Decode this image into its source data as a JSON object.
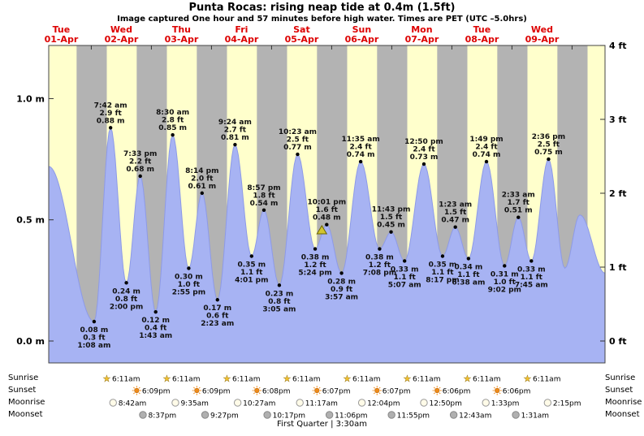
{
  "title": "Punta Rocas: rising  neap tide at 0.4m (1.5ft)",
  "subtitle": "Image captured One hour and 57 minutes before high water. Times are PET (UTC –5.0hrs)",
  "astro_labels": {
    "sunrise": "Sunrise",
    "sunset": "Sunset",
    "moonrise": "Moonrise",
    "moonset": "Moonset"
  },
  "moon_phase": "First Quarter | 3:30am",
  "chart_data": {
    "type": "area",
    "y_axis_left": {
      "unit": "m",
      "ticks": [
        0.0,
        0.5,
        1.0
      ]
    },
    "y_axis_right": {
      "unit": "ft",
      "ticks": [
        0,
        1,
        2,
        3,
        4
      ]
    },
    "days": [
      {
        "name": "Tue",
        "date": "01-Apr"
      },
      {
        "name": "Wed",
        "date": "02-Apr"
      },
      {
        "name": "Thu",
        "date": "03-Apr"
      },
      {
        "name": "Fri",
        "date": "04-Apr"
      },
      {
        "name": "Sat",
        "date": "05-Apr"
      },
      {
        "name": "Sun",
        "date": "06-Apr"
      },
      {
        "name": "Mon",
        "date": "07-Apr"
      },
      {
        "name": "Tue",
        "date": "08-Apr"
      },
      {
        "name": "Wed",
        "date": "09-Apr"
      }
    ],
    "tide_events": [
      {
        "day": 1,
        "time": "1:08 am",
        "type": "low",
        "m": 0.08,
        "ft": 0.3
      },
      {
        "day": 1,
        "time": "7:42 am",
        "type": "high",
        "m": 0.88,
        "ft": 2.9
      },
      {
        "day": 1,
        "time": "2:00 pm",
        "type": "low",
        "m": 0.24,
        "ft": 0.8
      },
      {
        "day": 1,
        "time": "7:33 pm",
        "type": "high",
        "m": 0.68,
        "ft": 2.2
      },
      {
        "day": 2,
        "time": "1:43 am",
        "type": "low",
        "m": 0.12,
        "ft": 0.4
      },
      {
        "day": 2,
        "time": "8:30 am",
        "type": "high",
        "m": 0.85,
        "ft": 2.8
      },
      {
        "day": 2,
        "time": "2:55 pm",
        "type": "low",
        "m": 0.3,
        "ft": 1.0
      },
      {
        "day": 2,
        "time": "8:14 pm",
        "type": "high",
        "m": 0.61,
        "ft": 2.0
      },
      {
        "day": 3,
        "time": "2:23 am",
        "type": "low",
        "m": 0.17,
        "ft": 0.6
      },
      {
        "day": 3,
        "time": "9:24 am",
        "type": "high",
        "m": 0.81,
        "ft": 2.7
      },
      {
        "day": 3,
        "time": "4:01 pm",
        "type": "low",
        "m": 0.35,
        "ft": 1.1
      },
      {
        "day": 3,
        "time": "8:57 pm",
        "type": "high",
        "m": 0.54,
        "ft": 1.8
      },
      {
        "day": 4,
        "time": "3:05 am",
        "type": "low",
        "m": 0.23,
        "ft": 0.8
      },
      {
        "day": 4,
        "time": "10:23 am",
        "type": "high",
        "m": 0.77,
        "ft": 2.5
      },
      {
        "day": 4,
        "time": "5:24 pm",
        "type": "low",
        "m": 0.38,
        "ft": 1.2
      },
      {
        "day": 4,
        "time": "10:01 pm",
        "type": "high",
        "m": 0.48,
        "ft": 1.6
      },
      {
        "day": 5,
        "time": "3:57 am",
        "type": "low",
        "m": 0.28,
        "ft": 0.9
      },
      {
        "day": 5,
        "time": "11:35 am",
        "type": "high",
        "m": 0.74,
        "ft": 2.4
      },
      {
        "day": 5,
        "time": "7:08 pm",
        "type": "low",
        "m": 0.38,
        "ft": 1.2
      },
      {
        "day": 5,
        "time": "11:43 pm",
        "type": "high",
        "m": 0.45,
        "ft": 1.5
      },
      {
        "day": 6,
        "time": "5:07 am",
        "type": "low",
        "m": 0.33,
        "ft": 1.1
      },
      {
        "day": 6,
        "time": "12:50 pm",
        "type": "high",
        "m": 0.73,
        "ft": 2.4
      },
      {
        "day": 6,
        "time": "8:17 pm",
        "type": "low",
        "m": 0.35,
        "ft": 1.1
      },
      {
        "day": 7,
        "time": "1:23 am",
        "type": "high",
        "m": 0.47,
        "ft": 1.5
      },
      {
        "day": 7,
        "time": "6:38 am",
        "type": "low",
        "m": 0.34,
        "ft": 1.1
      },
      {
        "day": 7,
        "time": "1:49 pm",
        "type": "high",
        "m": 0.74,
        "ft": 2.4
      },
      {
        "day": 7,
        "time": "9:02 pm",
        "type": "low",
        "m": 0.31,
        "ft": 1.0
      },
      {
        "day": 8,
        "time": "2:33 am",
        "type": "high",
        "m": 0.51,
        "ft": 1.7
      },
      {
        "day": 8,
        "time": "7:45 am",
        "type": "low",
        "m": 0.33,
        "ft": 1.1
      },
      {
        "day": 8,
        "time": "2:36 pm",
        "type": "high",
        "m": 0.75,
        "ft": 2.5
      }
    ],
    "now_marker": {
      "day": 4,
      "time": "8:04 pm"
    },
    "sunrise": [
      {
        "day": 1,
        "time": "6:11am"
      },
      {
        "day": 2,
        "time": "6:11am"
      },
      {
        "day": 3,
        "time": "6:11am"
      },
      {
        "day": 4,
        "time": "6:11am"
      },
      {
        "day": 5,
        "time": "6:11am"
      },
      {
        "day": 6,
        "time": "6:11am"
      },
      {
        "day": 7,
        "time": "6:11am"
      },
      {
        "day": 8,
        "time": "6:11am"
      }
    ],
    "sunset": [
      {
        "day": 1,
        "time": "6:09pm"
      },
      {
        "day": 2,
        "time": "6:09pm"
      },
      {
        "day": 3,
        "time": "6:08pm"
      },
      {
        "day": 4,
        "time": "6:07pm"
      },
      {
        "day": 5,
        "time": "6:07pm"
      },
      {
        "day": 6,
        "time": "6:06pm"
      },
      {
        "day": 7,
        "time": "6:06pm"
      }
    ],
    "moonrise": [
      {
        "day": 1,
        "time": "8:42am"
      },
      {
        "day": 2,
        "time": "9:35am"
      },
      {
        "day": 3,
        "time": "10:27am"
      },
      {
        "day": 4,
        "time": "11:17am"
      },
      {
        "day": 5,
        "time": "12:04pm"
      },
      {
        "day": 6,
        "time": "12:50pm"
      },
      {
        "day": 7,
        "time": "1:33pm"
      },
      {
        "day": 8,
        "time": "2:15pm"
      }
    ],
    "moonset": [
      {
        "day": 1,
        "time": "8:37pm"
      },
      {
        "day": 2,
        "time": "9:27pm"
      },
      {
        "day": 3,
        "time": "10:17pm"
      },
      {
        "day": 4,
        "time": "11:06pm"
      },
      {
        "day": 5,
        "time": "11:55pm"
      },
      {
        "day": 7,
        "time": "12:43am"
      },
      {
        "day": 8,
        "time": "1:31am"
      }
    ],
    "colors": {
      "day_label": "#dd0000",
      "band_day": "#ffffcc",
      "band_night": "#b3b3b3",
      "tide_fill": "#a7b3f3",
      "now_marker": "#d3c52f"
    }
  }
}
